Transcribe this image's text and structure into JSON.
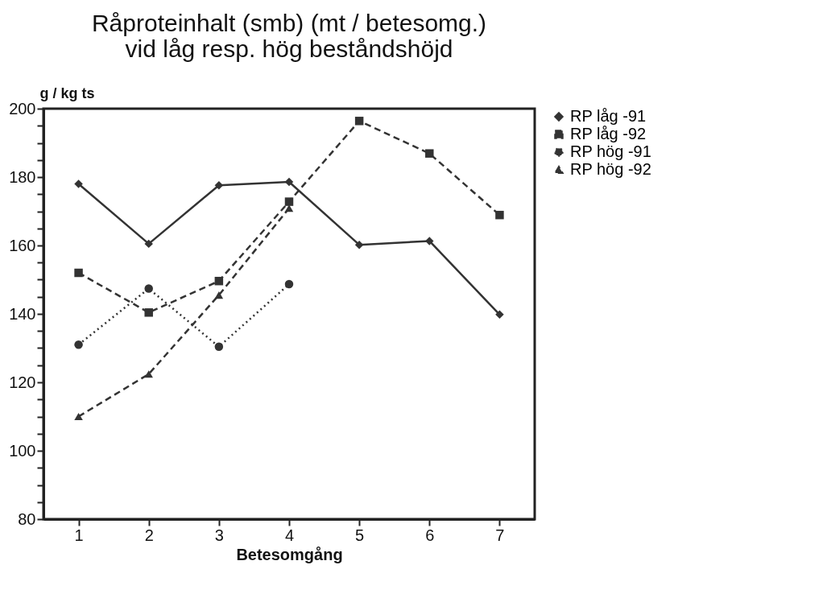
{
  "chart_data": {
    "type": "line",
    "title": [
      "Råproteinhalt (smb)  (mt / betesomg.)",
      "vid låg resp. hög  beståndshöjd"
    ],
    "ylabel": "g / kg ts",
    "xlabel": "Betesomgång",
    "categories": [
      "1",
      "2",
      "3",
      "4",
      "5",
      "6",
      "7"
    ],
    "series": [
      {
        "name": "RP låg -91",
        "color": "#333333",
        "marker": "diamond",
        "line_style": "solid",
        "values": [
          178,
          160.5,
          177.6,
          178.6,
          160.2,
          161.3,
          139.8
        ]
      },
      {
        "name": "RP låg -92",
        "color": "#333333",
        "marker": "square",
        "line_style": "dashed",
        "values": [
          152,
          140.4,
          149.6,
          172.8,
          196.4,
          186.9,
          168.9
        ]
      },
      {
        "name": "RP hög -91",
        "color": "#333333",
        "marker": "circle",
        "line_style": "dotted",
        "values": [
          131,
          147.4,
          130.4,
          148.7,
          null,
          null,
          null
        ]
      },
      {
        "name": "RP hög -92",
        "color": "#333333",
        "marker": "triangle",
        "line_style": "dashed",
        "values": [
          110,
          122.4,
          145.5,
          170.9,
          null,
          null,
          null
        ]
      }
    ],
    "ylim": [
      80,
      200
    ],
    "yticks": [
      80,
      {
        "value": 85,
        "label": null
      },
      {
        "value": 90,
        "label": null
      },
      {
        "value": 95,
        "label": null
      },
      100,
      {
        "value": 105,
        "label": null
      },
      {
        "value": 110,
        "label": null
      },
      {
        "value": 115,
        "label": null
      },
      120,
      {
        "value": 125,
        "label": null
      },
      {
        "value": 130,
        "label": null
      },
      {
        "value": 135,
        "label": null
      },
      140,
      {
        "value": 145,
        "label": null
      },
      {
        "value": 150,
        "label": null
      },
      {
        "value": 155,
        "label": null
      },
      160,
      {
        "value": 165,
        "label": null
      },
      {
        "value": 170,
        "label": null
      },
      {
        "value": 175,
        "label": null
      },
      180,
      {
        "value": 185,
        "label": null
      },
      {
        "value": 190,
        "label": null
      },
      {
        "value": 195,
        "label": null
      },
      200
    ],
    "grid": false,
    "legend": "right"
  }
}
